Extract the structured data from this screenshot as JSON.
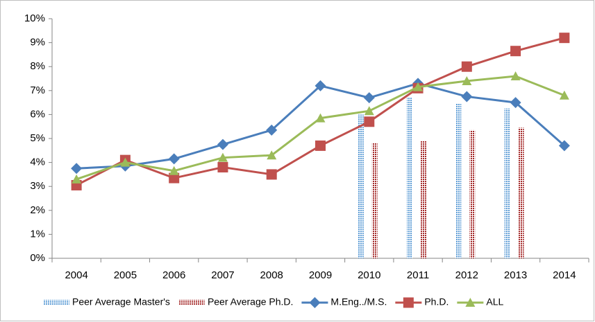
{
  "chart_data": {
    "type": "combo",
    "categories": [
      "2004",
      "2005",
      "2006",
      "2007",
      "2008",
      "2009",
      "2010",
      "2011",
      "2012",
      "2013",
      "2014"
    ],
    "ylim": [
      0,
      10
    ],
    "yticks": [
      {
        "value": 0,
        "label": "0%"
      },
      {
        "value": 1,
        "label": "1%"
      },
      {
        "value": 2,
        "label": "2%"
      },
      {
        "value": 3,
        "label": "3%"
      },
      {
        "value": 4,
        "label": "4%"
      },
      {
        "value": 5,
        "label": "5%"
      },
      {
        "value": 6,
        "label": "6%"
      },
      {
        "value": 7,
        "label": "7%"
      },
      {
        "value": 8,
        "label": "8%"
      },
      {
        "value": 9,
        "label": "9%"
      },
      {
        "value": 10,
        "label": "10%"
      }
    ],
    "series": [
      {
        "name": "Peer Average Master's",
        "type": "bar",
        "color": "#5b9bd5",
        "values": [
          null,
          null,
          null,
          null,
          null,
          null,
          6.0,
          6.7,
          6.45,
          6.25,
          null
        ]
      },
      {
        "name": "Peer Average Ph.D.",
        "type": "bar",
        "color": "#a52a2a",
        "values": [
          null,
          null,
          null,
          null,
          null,
          null,
          4.8,
          4.9,
          5.35,
          5.45,
          null
        ]
      },
      {
        "name": "M.Eng../M.S.",
        "type": "line",
        "marker": "diamond",
        "color": "#4a7ebb",
        "values": [
          3.75,
          3.85,
          4.15,
          4.75,
          5.35,
          7.2,
          6.7,
          7.3,
          6.75,
          6.5,
          4.7
        ]
      },
      {
        "name": "Ph.D.",
        "type": "line",
        "marker": "square",
        "color": "#c0504d",
        "values": [
          3.05,
          4.1,
          3.35,
          3.8,
          3.5,
          4.7,
          5.7,
          7.1,
          8.0,
          8.65,
          9.2
        ]
      },
      {
        "name": "ALL",
        "type": "line",
        "marker": "triangle",
        "color": "#9bbb59",
        "values": [
          3.3,
          4.0,
          3.65,
          4.2,
          4.3,
          5.85,
          6.15,
          7.15,
          7.4,
          7.6,
          6.8
        ]
      }
    ]
  }
}
